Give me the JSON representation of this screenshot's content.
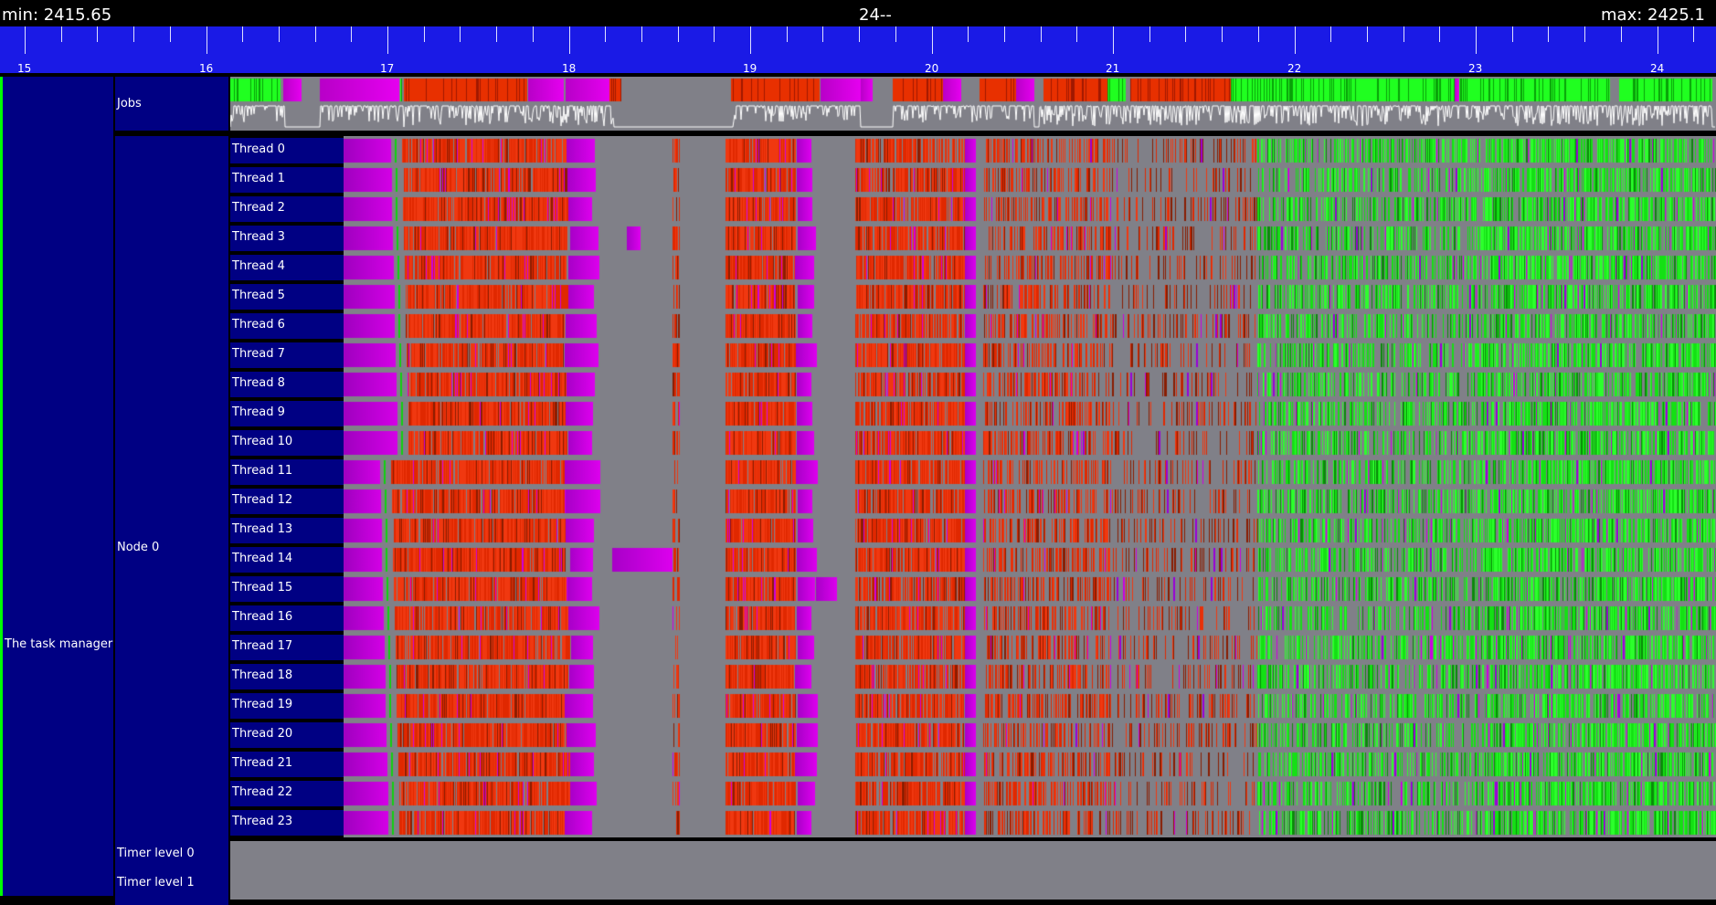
{
  "header": {
    "min_label": "min: 2415.65",
    "center_label": "24--",
    "max_label": "max: 2425.1"
  },
  "timeline": {
    "tick_labels": [
      "15",
      "16",
      "17",
      "18",
      "19",
      "20",
      "21",
      "22",
      "23",
      "24"
    ]
  },
  "tree": {
    "root_label": "The task manager",
    "jobs_label": "Jobs",
    "node_label": "Node 0",
    "threads": [
      "Thread 0",
      "Thread 1",
      "Thread 2",
      "Thread 3",
      "Thread 4",
      "Thread 5",
      "Thread 6",
      "Thread 7",
      "Thread 8",
      "Thread 9",
      "Thread 10",
      "Thread 11",
      "Thread 12",
      "Thread 13",
      "Thread 14",
      "Thread 15",
      "Thread 16",
      "Thread 17",
      "Thread 18",
      "Thread 19",
      "Thread 20",
      "Thread 21",
      "Thread 22",
      "Thread 23"
    ],
    "timers": [
      "Timer level 0",
      "Timer level 1"
    ]
  },
  "colors": {
    "ruler": "#1a1ae6",
    "label_bg": "#000083",
    "lane_bg": "#808088",
    "task_red": "#e02800",
    "task_magenta": "#cc00e0",
    "task_green": "#10e010",
    "accent_green": "#00ff00"
  }
}
